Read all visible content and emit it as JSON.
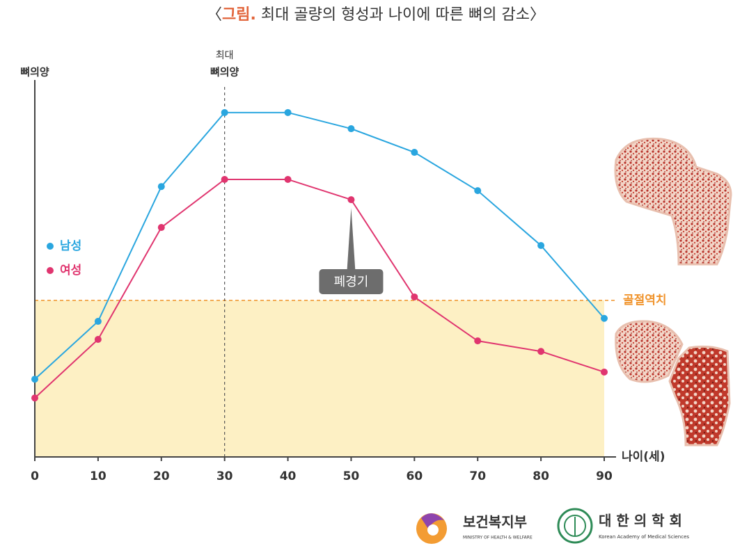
{
  "chart_data": {
    "type": "line",
    "title_open": "〈",
    "title_label": "그림.",
    "title": "최대 골량의 형성과 나이에 따른 뼈의 감소",
    "title_close": "〉",
    "y_label": "뼈의양",
    "x_label": "나이(세)",
    "x": [
      0,
      10,
      20,
      30,
      40,
      50,
      60,
      70,
      80,
      90
    ],
    "xlim": [
      0,
      90
    ],
    "xticks": [
      0,
      10,
      20,
      30,
      40,
      50,
      60,
      70,
      80,
      90
    ],
    "ylim": [
      0,
      100
    ],
    "series": [
      {
        "name": "남성",
        "color": "#2aa6df",
        "values": [
          20.7,
          36.1,
          72,
          91.7,
          91.7,
          87.4,
          81.1,
          70.9,
          56.3,
          36.9
        ]
      },
      {
        "name": "여성",
        "color": "#e0356f",
        "values": [
          15.7,
          31.3,
          61.1,
          73.9,
          73.9,
          68.5,
          42.6,
          30.9,
          28.1,
          22.6
        ]
      }
    ],
    "peak": {
      "x": 30,
      "label": [
        "최대",
        "뼈의양"
      ]
    },
    "menopause": {
      "x": 50,
      "label": "폐경기"
    },
    "threshold": {
      "value": 41.7,
      "label": "골절역치",
      "color": "#f0932b"
    },
    "logos": [
      {
        "name": "보건복지부",
        "subtitle": "MINISTRY OF HEALTH & WELFARE"
      },
      {
        "name": "대 한 의 학 회",
        "subtitle": "Korean Academy of Medical Sciences"
      }
    ]
  }
}
